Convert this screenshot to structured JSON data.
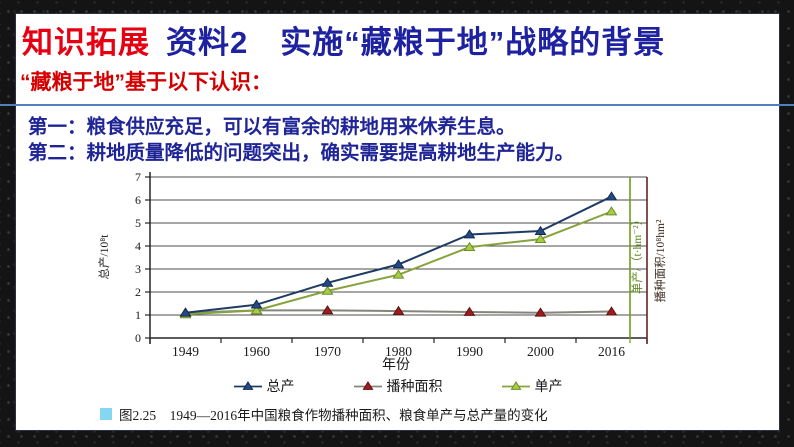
{
  "page": {
    "background_color": "#141414",
    "panel_color": "#ffffff",
    "divider_color": "#4f81bd"
  },
  "header": {
    "badge": "知识拓展",
    "badge_color": "#e60012",
    "title": "资料2　实施“藏粮于地”战略的背景",
    "title_color": "#1e22a0"
  },
  "subtitle": {
    "text": "“藏粮于地”基于以下认识：",
    "color": "#d40000"
  },
  "points": [
    {
      "text": "第一：粮食供应充足，可以有富余的耕地用来休养生息。"
    },
    {
      "text": "第二：耕地质量降低的问题突出，确实需要提高耕地生产能力。"
    }
  ],
  "chart_data": {
    "type": "line",
    "title": "",
    "categories": [
      "1949",
      "1960",
      "1970",
      "1980",
      "1990",
      "2000",
      "2016"
    ],
    "xlabel": "年份",
    "ylabel_left": "总产/10⁸t",
    "ylabel_right_inner": "单产/（t·hm⁻²）",
    "ylabel_right_outer": "播种面积/10⁸hm²",
    "ylim": [
      0,
      7
    ],
    "yticks": [
      0,
      1,
      2,
      3,
      4,
      5,
      6,
      7
    ],
    "grid": true,
    "legend_position": "bottom",
    "axis_color": "#262626",
    "grid_color": "#4d4d4d",
    "right_axis_inner_color": "#6f9c1f",
    "right_axis_outer_color": "#632423",
    "series": [
      {
        "name": "总产",
        "marker": "triangle",
        "line_color": "#1d3c63",
        "marker_fill": "#234a87",
        "marker_stroke": "#14294d",
        "values": [
          1.1,
          1.45,
          2.4,
          3.2,
          4.5,
          4.65,
          6.15
        ]
      },
      {
        "name": "播种面积",
        "marker": "triangle",
        "line_color": "#85857c",
        "marker_fill": "#a01c1c",
        "marker_stroke": "#5f1010",
        "values": [
          1.1,
          1.2,
          1.2,
          1.17,
          1.13,
          1.1,
          1.15
        ]
      },
      {
        "name": "单产",
        "marker": "triangle",
        "line_color": "#86a33c",
        "marker_fill": "#a6cc47",
        "marker_stroke": "#6e8f25",
        "values": [
          1.03,
          1.2,
          2.05,
          2.75,
          3.95,
          4.3,
          5.5
        ]
      }
    ]
  },
  "caption": {
    "square_color": "#85d6f0",
    "text": "图2.25　1949—2016年中国粮食作物播种面积、粮食单产与总产量的变化"
  }
}
